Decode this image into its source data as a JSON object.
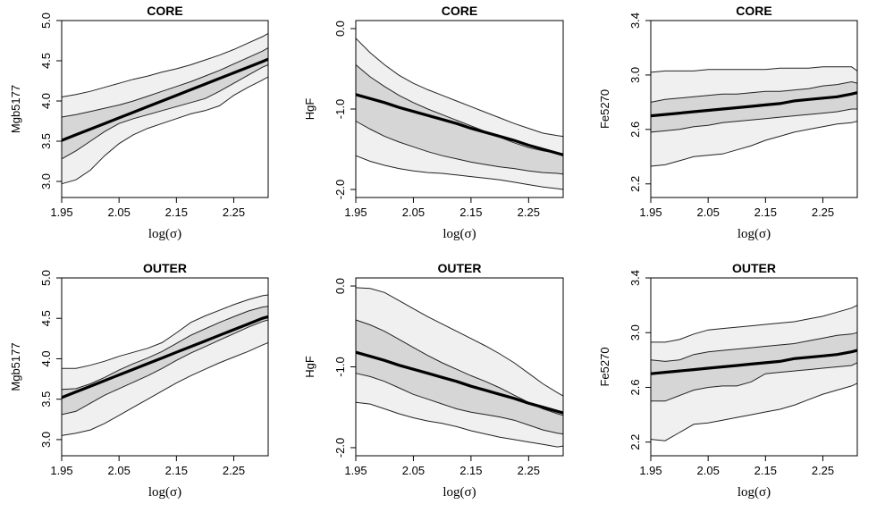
{
  "colors": {
    "outer_band": "#f0f0f0",
    "inner_band": "#d6d6d6",
    "fit_line": "#000000",
    "frame": "#000000"
  },
  "chart_data": [
    {
      "type": "line",
      "title": "CORE",
      "xlabel": "log(σ)",
      "ylabel": "Mgb5177",
      "xlim": [
        1.95,
        2.31
      ],
      "ylim": [
        2.8,
        5.0
      ],
      "xticks": [
        1.95,
        2.05,
        2.15,
        2.25
      ],
      "xtick_labels": [
        "1.95",
        "2.05",
        "2.15",
        "2.25"
      ],
      "yticks": [
        3.0,
        3.5,
        4.0,
        4.5,
        5.0
      ],
      "ytick_labels": [
        "3.0",
        "3.5",
        "4.0",
        "4.5",
        "5.0"
      ],
      "x": [
        1.95,
        1.975,
        2.0,
        2.025,
        2.05,
        2.075,
        2.1,
        2.125,
        2.15,
        2.175,
        2.2,
        2.225,
        2.25,
        2.275,
        2.3,
        2.31
      ],
      "series": [
        {
          "name": "outer-upper",
          "values": [
            4.05,
            4.08,
            4.12,
            4.17,
            4.22,
            4.27,
            4.31,
            4.36,
            4.4,
            4.45,
            4.51,
            4.57,
            4.64,
            4.72,
            4.8,
            4.84
          ]
        },
        {
          "name": "inner-upper",
          "values": [
            3.8,
            3.83,
            3.87,
            3.91,
            3.95,
            4.0,
            4.06,
            4.12,
            4.18,
            4.24,
            4.31,
            4.38,
            4.46,
            4.54,
            4.62,
            4.66
          ]
        },
        {
          "name": "fit",
          "values": [
            3.51,
            3.58,
            3.65,
            3.72,
            3.79,
            3.86,
            3.93,
            4.0,
            4.07,
            4.14,
            4.21,
            4.28,
            4.35,
            4.42,
            4.49,
            4.52
          ]
        },
        {
          "name": "inner-lower",
          "values": [
            3.28,
            3.38,
            3.5,
            3.62,
            3.72,
            3.78,
            3.83,
            3.88,
            3.93,
            3.98,
            4.03,
            4.12,
            4.22,
            4.32,
            4.42,
            4.45
          ]
        },
        {
          "name": "outer-lower",
          "values": [
            2.97,
            3.02,
            3.14,
            3.32,
            3.47,
            3.58,
            3.66,
            3.72,
            3.78,
            3.84,
            3.88,
            3.94,
            4.07,
            4.17,
            4.26,
            4.3
          ]
        }
      ]
    },
    {
      "type": "line",
      "title": "CORE",
      "xlabel": "log(σ)",
      "ylabel": "HgF",
      "xlim": [
        1.95,
        2.31
      ],
      "ylim": [
        -2.1,
        0.1
      ],
      "xticks": [
        1.95,
        2.05,
        2.15,
        2.25
      ],
      "xtick_labels": [
        "1.95",
        "2.05",
        "2.15",
        "2.25"
      ],
      "yticks": [
        0.0,
        -1.0,
        -2.0
      ],
      "ytick_labels": [
        "0.0",
        "-1.0",
        "-2.0"
      ],
      "x": [
        1.95,
        1.975,
        2.0,
        2.025,
        2.05,
        2.075,
        2.1,
        2.125,
        2.15,
        2.175,
        2.2,
        2.225,
        2.25,
        2.275,
        2.3,
        2.31
      ],
      "series": [
        {
          "name": "outer-upper",
          "values": [
            -0.12,
            -0.3,
            -0.45,
            -0.58,
            -0.68,
            -0.76,
            -0.83,
            -0.9,
            -0.97,
            -1.04,
            -1.11,
            -1.18,
            -1.24,
            -1.3,
            -1.33,
            -1.34
          ]
        },
        {
          "name": "inner-upper",
          "values": [
            -0.45,
            -0.6,
            -0.72,
            -0.83,
            -0.92,
            -1.0,
            -1.07,
            -1.14,
            -1.21,
            -1.28,
            -1.35,
            -1.42,
            -1.48,
            -1.52,
            -1.55,
            -1.56
          ]
        },
        {
          "name": "fit",
          "values": [
            -0.82,
            -0.87,
            -0.92,
            -0.98,
            -1.03,
            -1.08,
            -1.13,
            -1.18,
            -1.24,
            -1.29,
            -1.34,
            -1.39,
            -1.45,
            -1.5,
            -1.55,
            -1.57
          ]
        },
        {
          "name": "inner-lower",
          "values": [
            -1.15,
            -1.25,
            -1.34,
            -1.41,
            -1.47,
            -1.53,
            -1.58,
            -1.62,
            -1.66,
            -1.69,
            -1.72,
            -1.74,
            -1.77,
            -1.79,
            -1.8,
            -1.81
          ]
        },
        {
          "name": "outer-lower",
          "values": [
            -1.58,
            -1.65,
            -1.7,
            -1.74,
            -1.77,
            -1.79,
            -1.8,
            -1.82,
            -1.84,
            -1.86,
            -1.88,
            -1.91,
            -1.94,
            -1.97,
            -1.99,
            -2.0
          ]
        }
      ]
    },
    {
      "type": "line",
      "title": "CORE",
      "xlabel": "log(σ)",
      "ylabel": "Fe5270",
      "xlim": [
        1.95,
        2.31
      ],
      "ylim": [
        2.1,
        3.4
      ],
      "xticks": [
        1.95,
        2.05,
        2.15,
        2.25
      ],
      "xtick_labels": [
        "1.95",
        "2.05",
        "2.15",
        "2.25"
      ],
      "yticks": [
        2.2,
        2.6,
        3.0,
        3.4
      ],
      "ytick_labels": [
        "2.2",
        "2.6",
        "3.0",
        "3.4"
      ],
      "x": [
        1.95,
        1.975,
        2.0,
        2.025,
        2.05,
        2.075,
        2.1,
        2.125,
        2.15,
        2.175,
        2.2,
        2.225,
        2.25,
        2.275,
        2.3,
        2.31
      ],
      "series": [
        {
          "name": "outer-upper",
          "values": [
            3.02,
            3.03,
            3.03,
            3.03,
            3.04,
            3.04,
            3.04,
            3.04,
            3.04,
            3.05,
            3.05,
            3.05,
            3.06,
            3.06,
            3.06,
            3.03
          ]
        },
        {
          "name": "inner-upper",
          "values": [
            2.8,
            2.82,
            2.83,
            2.84,
            2.85,
            2.86,
            2.86,
            2.87,
            2.88,
            2.88,
            2.89,
            2.9,
            2.92,
            2.93,
            2.95,
            2.94
          ]
        },
        {
          "name": "fit",
          "values": [
            2.7,
            2.71,
            2.72,
            2.73,
            2.74,
            2.75,
            2.76,
            2.77,
            2.78,
            2.79,
            2.81,
            2.82,
            2.83,
            2.84,
            2.86,
            2.87
          ]
        },
        {
          "name": "inner-lower",
          "values": [
            2.58,
            2.59,
            2.6,
            2.62,
            2.63,
            2.65,
            2.66,
            2.67,
            2.68,
            2.69,
            2.7,
            2.71,
            2.72,
            2.73,
            2.75,
            2.75
          ]
        },
        {
          "name": "outer-lower",
          "values": [
            2.33,
            2.34,
            2.37,
            2.4,
            2.41,
            2.42,
            2.45,
            2.48,
            2.52,
            2.55,
            2.58,
            2.6,
            2.62,
            2.64,
            2.65,
            2.66
          ]
        }
      ]
    },
    {
      "type": "line",
      "title": "OUTER",
      "xlabel": "log(σ)",
      "ylabel": "Mgb5177",
      "xlim": [
        1.95,
        2.31
      ],
      "ylim": [
        2.8,
        5.0
      ],
      "xticks": [
        1.95,
        2.05,
        2.15,
        2.25
      ],
      "xtick_labels": [
        "1.95",
        "2.05",
        "2.15",
        "2.25"
      ],
      "yticks": [
        3.0,
        3.5,
        4.0,
        4.5,
        5.0
      ],
      "ytick_labels": [
        "3.0",
        "3.5",
        "4.0",
        "4.5",
        "5.0"
      ],
      "x": [
        1.95,
        1.975,
        2.0,
        2.025,
        2.05,
        2.075,
        2.1,
        2.125,
        2.15,
        2.175,
        2.2,
        2.225,
        2.25,
        2.275,
        2.3,
        2.31
      ],
      "series": [
        {
          "name": "outer-upper",
          "values": [
            3.88,
            3.88,
            3.92,
            3.97,
            4.03,
            4.08,
            4.13,
            4.2,
            4.32,
            4.45,
            4.53,
            4.6,
            4.67,
            4.73,
            4.78,
            4.79
          ]
        },
        {
          "name": "inner-upper",
          "values": [
            3.62,
            3.63,
            3.69,
            3.77,
            3.86,
            3.94,
            4.01,
            4.09,
            4.19,
            4.29,
            4.37,
            4.45,
            4.52,
            4.59,
            4.64,
            4.65
          ]
        },
        {
          "name": "fit",
          "values": [
            3.52,
            3.59,
            3.66,
            3.73,
            3.8,
            3.87,
            3.94,
            4.01,
            4.08,
            4.15,
            4.22,
            4.29,
            4.36,
            4.43,
            4.5,
            4.52
          ]
        },
        {
          "name": "inner-lower",
          "values": [
            3.31,
            3.35,
            3.45,
            3.55,
            3.63,
            3.71,
            3.79,
            3.88,
            3.98,
            4.07,
            4.15,
            4.23,
            4.31,
            4.39,
            4.46,
            4.48
          ]
        },
        {
          "name": "outer-lower",
          "values": [
            3.05,
            3.08,
            3.12,
            3.2,
            3.3,
            3.4,
            3.5,
            3.6,
            3.7,
            3.79,
            3.87,
            3.95,
            4.02,
            4.09,
            4.17,
            4.2
          ]
        }
      ]
    },
    {
      "type": "line",
      "title": "OUTER",
      "xlabel": "log(σ)",
      "ylabel": "HgF",
      "xlim": [
        1.95,
        2.31
      ],
      "ylim": [
        -2.1,
        0.1
      ],
      "xticks": [
        1.95,
        2.05,
        2.15,
        2.25
      ],
      "xtick_labels": [
        "1.95",
        "2.05",
        "2.15",
        "2.25"
      ],
      "yticks": [
        0.0,
        -1.0,
        -2.0
      ],
      "ytick_labels": [
        "0.0",
        "-1.0",
        "-2.0"
      ],
      "x": [
        1.95,
        1.975,
        2.0,
        2.025,
        2.05,
        2.075,
        2.1,
        2.125,
        2.15,
        2.175,
        2.2,
        2.225,
        2.25,
        2.275,
        2.3,
        2.31
      ],
      "series": [
        {
          "name": "outer-upper",
          "values": [
            -0.02,
            -0.03,
            -0.08,
            -0.18,
            -0.28,
            -0.38,
            -0.47,
            -0.56,
            -0.65,
            -0.74,
            -0.84,
            -0.95,
            -1.08,
            -1.21,
            -1.32,
            -1.36
          ]
        },
        {
          "name": "inner-upper",
          "values": [
            -0.42,
            -0.48,
            -0.56,
            -0.66,
            -0.76,
            -0.86,
            -0.95,
            -1.03,
            -1.11,
            -1.18,
            -1.26,
            -1.35,
            -1.44,
            -1.52,
            -1.58,
            -1.6
          ]
        },
        {
          "name": "fit",
          "values": [
            -0.82,
            -0.87,
            -0.92,
            -0.98,
            -1.03,
            -1.08,
            -1.13,
            -1.18,
            -1.24,
            -1.29,
            -1.34,
            -1.39,
            -1.45,
            -1.5,
            -1.55,
            -1.57
          ]
        },
        {
          "name": "inner-lower",
          "values": [
            -1.08,
            -1.12,
            -1.18,
            -1.26,
            -1.34,
            -1.4,
            -1.46,
            -1.52,
            -1.56,
            -1.59,
            -1.62,
            -1.66,
            -1.72,
            -1.78,
            -1.82,
            -1.83
          ]
        },
        {
          "name": "outer-lower",
          "values": [
            -1.44,
            -1.46,
            -1.52,
            -1.58,
            -1.63,
            -1.67,
            -1.7,
            -1.74,
            -1.79,
            -1.83,
            -1.87,
            -1.9,
            -1.93,
            -1.96,
            -1.99,
            -1.98
          ]
        }
      ]
    },
    {
      "type": "line",
      "title": "OUTER",
      "xlabel": "log(σ)",
      "ylabel": "Fe5270",
      "xlim": [
        1.95,
        2.31
      ],
      "ylim": [
        2.1,
        3.4
      ],
      "xticks": [
        1.95,
        2.05,
        2.15,
        2.25
      ],
      "xtick_labels": [
        "1.95",
        "2.05",
        "2.15",
        "2.25"
      ],
      "yticks": [
        2.2,
        2.6,
        3.0,
        3.4
      ],
      "ytick_labels": [
        "2.2",
        "2.6",
        "3.0",
        "3.4"
      ],
      "x": [
        1.95,
        1.975,
        2.0,
        2.025,
        2.05,
        2.075,
        2.1,
        2.125,
        2.15,
        2.175,
        2.2,
        2.225,
        2.25,
        2.275,
        2.3,
        2.31
      ],
      "series": [
        {
          "name": "outer-upper",
          "values": [
            2.93,
            2.93,
            2.95,
            2.99,
            3.02,
            3.03,
            3.04,
            3.05,
            3.06,
            3.07,
            3.08,
            3.1,
            3.12,
            3.15,
            3.18,
            3.2
          ]
        },
        {
          "name": "inner-upper",
          "values": [
            2.8,
            2.79,
            2.8,
            2.84,
            2.86,
            2.87,
            2.88,
            2.89,
            2.9,
            2.91,
            2.92,
            2.94,
            2.96,
            2.98,
            2.99,
            3.0
          ]
        },
        {
          "name": "fit",
          "values": [
            2.7,
            2.71,
            2.72,
            2.73,
            2.74,
            2.75,
            2.76,
            2.77,
            2.78,
            2.79,
            2.81,
            2.82,
            2.83,
            2.84,
            2.86,
            2.87
          ]
        },
        {
          "name": "inner-lower",
          "values": [
            2.5,
            2.5,
            2.54,
            2.58,
            2.6,
            2.61,
            2.61,
            2.64,
            2.7,
            2.71,
            2.72,
            2.73,
            2.74,
            2.75,
            2.76,
            2.78
          ]
        },
        {
          "name": "outer-lower",
          "values": [
            2.22,
            2.21,
            2.27,
            2.33,
            2.34,
            2.36,
            2.38,
            2.4,
            2.42,
            2.44,
            2.47,
            2.51,
            2.55,
            2.58,
            2.61,
            2.63
          ]
        }
      ]
    }
  ]
}
